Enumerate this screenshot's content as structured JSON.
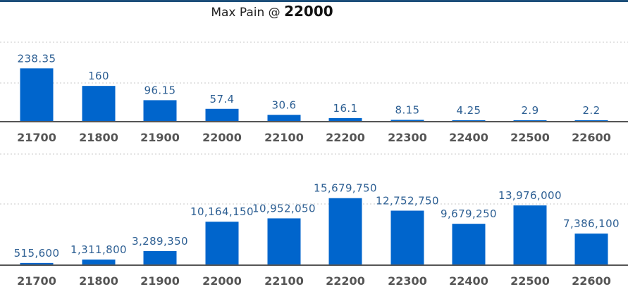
{
  "header": {
    "title_prefix": "Max Pain @",
    "title_value": "22000"
  },
  "colors": {
    "bar": "#0065cc",
    "value_label": "#2d5f93",
    "axis": "#555555",
    "grid": "#c8c8c8",
    "accent_line": "#1d4f7a"
  },
  "chart_data": [
    {
      "type": "bar",
      "title": "",
      "categories": [
        "21700",
        "21800",
        "21900",
        "22000",
        "22100",
        "22200",
        "22300",
        "22400",
        "22500",
        "22600"
      ],
      "values": [
        238.35,
        160,
        96.15,
        57.4,
        30.6,
        16.1,
        8.15,
        4.25,
        2.9,
        2.2
      ],
      "value_labels": [
        "238.35",
        "160",
        "96.15",
        "57.4",
        "30.6",
        "16.1",
        "8.15",
        "4.25",
        "2.9",
        "2.2"
      ],
      "xlabel": "",
      "ylabel": "",
      "ylim": [
        0,
        450
      ],
      "grid": true,
      "legend": "none"
    },
    {
      "type": "bar",
      "title": "",
      "categories": [
        "21700",
        "21800",
        "21900",
        "22000",
        "22100",
        "22200",
        "22300",
        "22400",
        "22500",
        "22600"
      ],
      "values": [
        515600,
        1311800,
        3289350,
        10164150,
        10952050,
        15679750,
        12752750,
        9679250,
        13976000,
        7386100
      ],
      "value_labels": [
        "515,600",
        "1,311,800",
        "3,289,350",
        "10,164,150",
        "10,952,050",
        "15,679,750",
        "12,752,750",
        "9,679,250",
        "13,976,000",
        "7,386,100"
      ],
      "xlabel": "",
      "ylabel": "",
      "ylim": [
        0,
        28800000
      ],
      "grid": true,
      "legend": "none"
    }
  ]
}
